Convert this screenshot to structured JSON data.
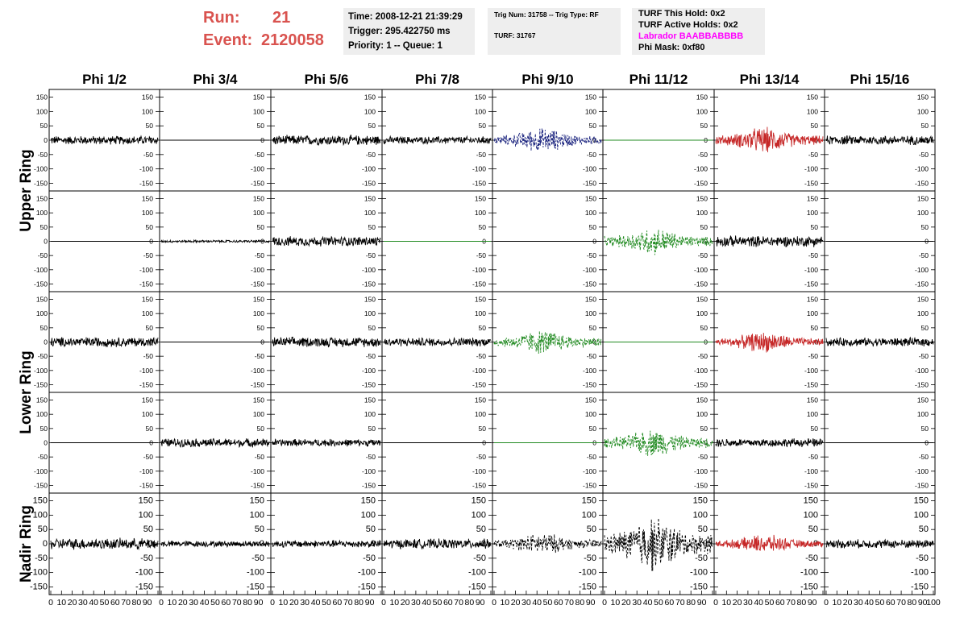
{
  "header": {
    "run_label": "Run:",
    "run_value": "21",
    "event_label": "Event:",
    "event_value": "2120058",
    "time_line": "Time: 2008-12-21 21:39:29",
    "trigger_line": "Trigger: 295.422750 ms",
    "priority_line": "Priority: 1 -- Queue: 1",
    "trig_line": "Trig Num: 31758 -- Trig Type: RF",
    "turf_line": "TURF: 31767",
    "turf_hold_line": "TURF This Hold: 0x2",
    "turf_active_line": "TURF Active Holds: 0x2",
    "labrador_line": "Labrador BAABBABBBB",
    "phi_mask_line": "Phi Mask: 0xf80"
  },
  "colors": {
    "header_red": "#d9534f",
    "labrador_magenta": "#ff00ff",
    "trace_black": "#000000",
    "trace_navy": "#1a237e",
    "trace_green": "#228b22",
    "trace_red": "#c62828"
  },
  "chart_data": {
    "type": "line",
    "columns": [
      "Phi 1/2",
      "Phi 3/4",
      "Phi 5/6",
      "Phi 7/8",
      "Phi 9/10",
      "Phi 11/12",
      "Phi 13/14",
      "Phi 15/16"
    ],
    "ring_labels": [
      "Upper Ring",
      "Lower Ring",
      "Nadir Ring"
    ],
    "rows_per_ring": [
      2,
      2,
      1
    ],
    "xlim": [
      0,
      100
    ],
    "ylim": [
      -160,
      160
    ],
    "x_ticks": [
      0,
      10,
      20,
      30,
      40,
      50,
      60,
      70,
      80,
      90,
      100
    ],
    "y_ticks": [
      -150,
      -100,
      -50,
      0,
      50,
      100,
      150
    ],
    "panels": [
      [
        {
          "color": "trace_black",
          "amp": 14,
          "style": "solid"
        },
        {
          "color": "trace_black",
          "amp": 0,
          "style": "solid"
        },
        {
          "color": "trace_black",
          "amp": 16,
          "style": "solid"
        },
        {
          "color": "trace_black",
          "amp": 12,
          "style": "solid"
        },
        {
          "color": "trace_navy",
          "amp": 40,
          "style": "dashed",
          "burst": true
        },
        {
          "color": "trace_green",
          "amp": 0,
          "style": "solid"
        },
        {
          "color": "trace_red",
          "amp": 42,
          "style": "solid",
          "burst": true
        },
        {
          "color": "trace_black",
          "amp": 15,
          "style": "solid"
        }
      ],
      [
        {
          "color": "trace_black",
          "amp": 0,
          "style": "solid"
        },
        {
          "color": "trace_black",
          "amp": 4,
          "style": "solid"
        },
        {
          "color": "trace_black",
          "amp": 16,
          "style": "solid"
        },
        {
          "color": "trace_green",
          "amp": 0,
          "style": "solid"
        },
        {
          "color": "trace_black",
          "amp": 0,
          "style": "solid"
        },
        {
          "color": "trace_green",
          "amp": 45,
          "style": "dashed",
          "burst": true
        },
        {
          "color": "trace_black",
          "amp": 18,
          "style": "solid"
        },
        {
          "color": "trace_black",
          "amp": 0,
          "style": "solid"
        }
      ],
      [
        {
          "color": "trace_black",
          "amp": 16,
          "style": "solid"
        },
        {
          "color": "trace_black",
          "amp": 0,
          "style": "solid"
        },
        {
          "color": "trace_black",
          "amp": 16,
          "style": "solid"
        },
        {
          "color": "trace_black",
          "amp": 14,
          "style": "solid"
        },
        {
          "color": "trace_green",
          "amp": 40,
          "style": "dashed",
          "burst": true
        },
        {
          "color": "trace_green",
          "amp": 0,
          "style": "solid"
        },
        {
          "color": "trace_red",
          "amp": 34,
          "style": "solid",
          "burst": true
        },
        {
          "color": "trace_black",
          "amp": 14,
          "style": "solid"
        }
      ],
      [
        {
          "color": "trace_black",
          "amp": 0,
          "style": "solid"
        },
        {
          "color": "trace_black",
          "amp": 14,
          "style": "solid"
        },
        {
          "color": "trace_black",
          "amp": 12,
          "style": "solid"
        },
        {
          "color": "trace_black",
          "amp": 0,
          "style": "solid"
        },
        {
          "color": "trace_green",
          "amp": 0,
          "style": "solid"
        },
        {
          "color": "trace_green",
          "amp": 45,
          "style": "dashed",
          "burst": true
        },
        {
          "color": "trace_black",
          "amp": 14,
          "style": "solid"
        },
        {
          "color": "trace_black",
          "amp": 0,
          "style": "solid"
        }
      ],
      [
        {
          "color": "trace_black",
          "amp": 18,
          "style": "solid"
        },
        {
          "color": "trace_black",
          "amp": 10,
          "style": "solid"
        },
        {
          "color": "trace_black",
          "amp": 12,
          "style": "solid"
        },
        {
          "color": "trace_black",
          "amp": 16,
          "style": "solid"
        },
        {
          "color": "trace_black",
          "amp": 35,
          "style": "dashed",
          "burst": true
        },
        {
          "color": "trace_black",
          "amp": 90,
          "style": "dashed",
          "burst": true
        },
        {
          "color": "trace_red",
          "amp": 30,
          "style": "solid",
          "burst": true
        },
        {
          "color": "trace_black",
          "amp": 14,
          "style": "solid"
        }
      ]
    ]
  }
}
